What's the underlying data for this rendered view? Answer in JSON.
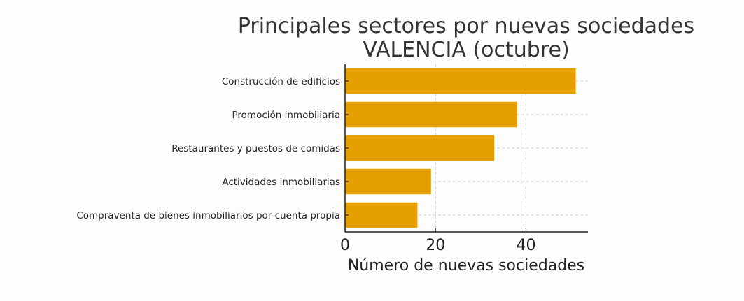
{
  "chart_data": {
    "type": "bar",
    "orientation": "horizontal",
    "title": "Principales sectores por nuevas sociedades",
    "subtitle": "VALENCIA (octubre)",
    "xlabel": "Número de nuevas sociedades",
    "ylabel": "",
    "categories": [
      "Construcción de edificios",
      "Promoción inmobiliaria",
      "Restaurantes y puestos de comidas",
      "Actividades inmobiliarias",
      "Compraventa de bienes inmobiliarios por cuenta propia"
    ],
    "values": [
      51,
      38,
      33,
      19,
      16
    ],
    "xlim": [
      0,
      53.7
    ],
    "xticks": [
      0,
      20,
      40
    ],
    "grid": true,
    "bar_color": "#E69F00"
  }
}
